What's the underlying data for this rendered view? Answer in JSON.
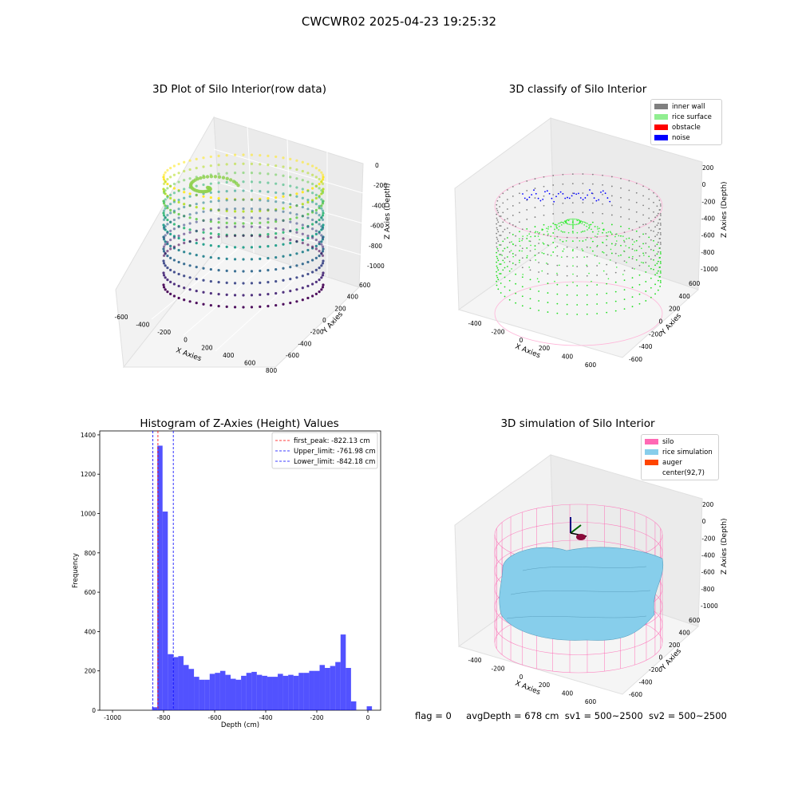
{
  "suptitle": "CWCWR02 2025-04-23 19:25:32",
  "status_line": {
    "flag": "flag = 0",
    "avg_depth": "avgDepth = 678 cm",
    "sv1": "sv1 = 500~2500",
    "sv2": "sv2 = 500~2500"
  },
  "panels": {
    "raw": {
      "title": "3D Plot of Silo Interior(row data)",
      "xlabel": "X Axies",
      "ylabel": "Y Axies",
      "zlabel": "Z Axies (Depth)",
      "x_ticks": [
        "-600",
        "-400",
        "-200",
        "0",
        "200",
        "400",
        "600",
        "800"
      ],
      "y_ticks": [
        "-600",
        "-400",
        "-200",
        "0",
        "200",
        "400",
        "600"
      ],
      "z_ticks": [
        "0",
        "-200",
        "-400",
        "-600",
        "-800",
        "-1000"
      ]
    },
    "classify": {
      "title": "3D classify of Silo Interior",
      "xlabel": "X Axies",
      "ylabel": "Y Axies",
      "zlabel": "Z Axies (Depth)",
      "x_ticks": [
        "-400",
        "-200",
        "0",
        "200",
        "400",
        "600"
      ],
      "y_ticks": [
        "-600",
        "-400",
        "-200",
        "0",
        "200",
        "400",
        "600"
      ],
      "z_ticks": [
        "200",
        "0",
        "-200",
        "-400",
        "-600",
        "-800",
        "-1000"
      ],
      "legend": [
        {
          "label": "inner wall",
          "color": "#808080"
        },
        {
          "label": "rice surface",
          "color": "#90ee90"
        },
        {
          "label": "obstacle",
          "color": "#ff0000"
        },
        {
          "label": "noise",
          "color": "#0000ff"
        }
      ]
    },
    "simulation": {
      "title": "3D simulation of Silo Interior",
      "xlabel": "X Axies",
      "ylabel": "Y Axies",
      "zlabel": "Z Axies (Depth)",
      "x_ticks": [
        "-400",
        "-200",
        "0",
        "200",
        "400",
        "600"
      ],
      "y_ticks": [
        "-600",
        "-400",
        "-200",
        "0",
        "200",
        "400",
        "600"
      ],
      "z_ticks": [
        "200",
        "0",
        "-200",
        "-400",
        "-600",
        "-800",
        "-1000"
      ],
      "legend": [
        {
          "label": "silo",
          "color": "#ff69b4"
        },
        {
          "label": "rice simulation",
          "color": "#87ceeb"
        },
        {
          "label": "auger",
          "color": "#ff4500"
        },
        {
          "label": "center(92,7)",
          "color": "#ffffff"
        }
      ]
    }
  },
  "chart_data": {
    "type": "bar",
    "title": "Histogram of Z-Axies (Height) Values",
    "xlabel": "Depth (cm)",
    "ylabel": "Frequency",
    "xlim": [
      -1050,
      50
    ],
    "ylim": [
      0,
      1420
    ],
    "x_ticks": [
      -1000,
      -800,
      -600,
      -400,
      -200,
      0
    ],
    "y_ticks": [
      0,
      200,
      400,
      600,
      800,
      1000,
      1200,
      1400
    ],
    "bar_color": "#0000ff",
    "bin_width": 20.5,
    "bin_starts": [
      -845,
      -824.5,
      -804,
      -783.5,
      -763,
      -742.5,
      -722,
      -701.5,
      -681,
      -660.5,
      -640,
      -619.5,
      -599,
      -578.5,
      -558,
      -537.5,
      -517,
      -496.5,
      -476,
      -455.5,
      -435,
      -414.5,
      -394,
      -373.5,
      -353,
      -332.5,
      -312,
      -291.5,
      -271,
      -250.5,
      -230,
      -209.5,
      -189,
      -168.5,
      -148,
      -127.5,
      -107,
      -86.5,
      -66,
      -45.5,
      -25,
      -4.5
    ],
    "values": [
      15,
      1345,
      1010,
      285,
      270,
      275,
      230,
      210,
      170,
      155,
      155,
      185,
      190,
      200,
      180,
      160,
      155,
      175,
      190,
      195,
      180,
      175,
      170,
      170,
      185,
      175,
      180,
      175,
      190,
      190,
      200,
      200,
      230,
      215,
      225,
      245,
      385,
      215,
      45,
      0,
      0,
      20
    ],
    "lines": [
      {
        "label": "first_peak: -822.13 cm",
        "x": -822.13,
        "color": "#ff0000"
      },
      {
        "label": "Upper_limit: -761.98 cm",
        "x": -761.98,
        "color": "#0000ff"
      },
      {
        "label": "Lower_limit: -842.18 cm",
        "x": -842.18,
        "color": "#0000ff"
      }
    ],
    "legend_position": "top-right"
  }
}
